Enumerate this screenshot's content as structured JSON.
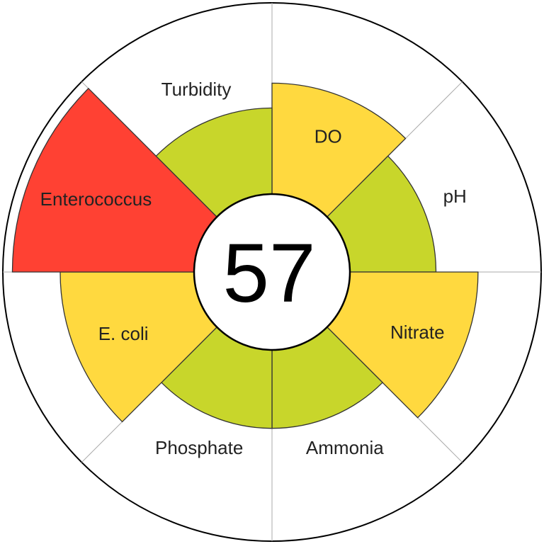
{
  "chart_data": {
    "type": "polar-area",
    "score": "57",
    "max_value": 100,
    "segments": [
      {
        "label": "DO",
        "value": 58,
        "color": "#FFD93F"
      },
      {
        "label": "pH",
        "value": 45,
        "color": "#C8D62B"
      },
      {
        "label": "Nitrate",
        "value": 67,
        "color": "#FFD93F"
      },
      {
        "label": "Ammonia",
        "value": 41,
        "color": "#C8D62B"
      },
      {
        "label": "Phosphate",
        "value": 41,
        "color": "#C8D62B"
      },
      {
        "label": "E. coli",
        "value": 70,
        "color": "#FFD93F"
      },
      {
        "label": "Enterococcus",
        "value": 95,
        "color": "#FF4133"
      },
      {
        "label": "Turbidity",
        "value": 45,
        "color": "#C8D62B"
      }
    ]
  }
}
